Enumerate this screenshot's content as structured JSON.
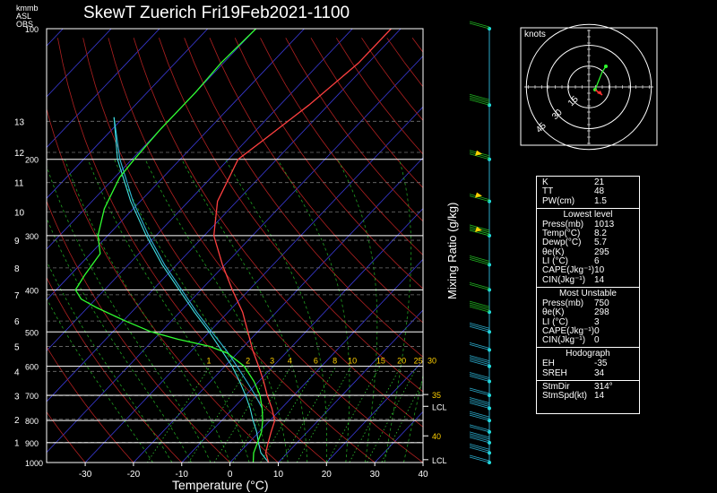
{
  "chart_data": {
    "type": "skewt",
    "title": "SkewT Zuerich Fri19Feb2021-1100",
    "xlabel": "Temperature (°C)",
    "ylabel_right": "Mixing Ratio (g/kg)",
    "corner_labels": [
      "km",
      "ASL",
      "OBS"
    ],
    "pressure_unit_label": "mb",
    "pressure_levels": [
      1000,
      900,
      800,
      700,
      600,
      500,
      400,
      300,
      200,
      100
    ],
    "pressure_ticks": [
      "1000",
      "900",
      "800",
      "700",
      "600",
      "500",
      "400",
      "300",
      "200",
      "100"
    ],
    "height_ticks": [
      "1",
      "2",
      "3",
      "4",
      "5",
      "6",
      "7",
      "8",
      "9",
      "10",
      "11",
      "12",
      "13"
    ],
    "height_km": [
      1,
      2,
      3,
      4,
      5,
      6,
      7,
      8,
      9,
      10,
      11,
      12,
      13
    ],
    "x_ticks": [
      "-30",
      "-20",
      "-10",
      "0",
      "10",
      "20",
      "30",
      "40"
    ],
    "x_tick_values": [
      -30,
      -20,
      -10,
      0,
      10,
      20,
      30,
      40
    ],
    "xlim": [
      -38,
      40
    ],
    "plim": [
      1000,
      100
    ],
    "mixing_ratio_values": [
      "1",
      "2",
      "3",
      "4",
      "6",
      "8",
      "10",
      "15",
      "20",
      "25",
      "30"
    ],
    "mixing_ratio_g_kg": [
      1,
      2,
      3,
      4,
      6,
      8,
      10,
      15,
      20,
      25,
      30
    ],
    "side_markers": [
      {
        "text": "35",
        "p": 697,
        "color": "#ffd000"
      },
      {
        "text": "LCL",
        "p": 742,
        "color": "#ffffff"
      },
      {
        "text": "40",
        "p": 868,
        "color": "#ffd000"
      },
      {
        "text": "LCL",
        "p": 985,
        "color": "#ffffff"
      }
    ],
    "temperature": {
      "name": "Temperature",
      "color": "#ff4040",
      "points": [
        [
          1013,
          8.2
        ],
        [
          1000,
          8.0
        ],
        [
          950,
          5.5
        ],
        [
          900,
          4.0
        ],
        [
          850,
          2.5
        ],
        [
          800,
          1.0
        ],
        [
          750,
          -2.0
        ],
        [
          700,
          -5.5
        ],
        [
          650,
          -9.0
        ],
        [
          600,
          -13.0
        ],
        [
          550,
          -17.5
        ],
        [
          500,
          -22.0
        ],
        [
          450,
          -27.0
        ],
        [
          400,
          -33.5
        ],
        [
          350,
          -40.5
        ],
        [
          300,
          -48.0
        ],
        [
          250,
          -54.0
        ],
        [
          200,
          -58.0
        ],
        [
          180,
          -56.5
        ],
        [
          150,
          -54.0
        ],
        [
          120,
          -52.0
        ],
        [
          100,
          -52.0
        ]
      ]
    },
    "dewpoint": {
      "name": "Dewpoint",
      "color": "#30ff30",
      "points": [
        [
          1013,
          5.7
        ],
        [
          1000,
          4.8
        ],
        [
          950,
          3.0
        ],
        [
          900,
          1.8
        ],
        [
          850,
          0.5
        ],
        [
          800,
          -1.5
        ],
        [
          750,
          -4.0
        ],
        [
          700,
          -7.0
        ],
        [
          650,
          -11.0
        ],
        [
          600,
          -16.0
        ],
        [
          560,
          -22.0
        ],
        [
          540,
          -27.0
        ],
        [
          520,
          -35.0
        ],
        [
          500,
          -42.0
        ],
        [
          470,
          -50.0
        ],
        [
          440,
          -58.0
        ],
        [
          420,
          -63.0
        ],
        [
          400,
          -66.0
        ],
        [
          370,
          -67.0
        ],
        [
          330,
          -68.0
        ],
        [
          300,
          -72.0
        ],
        [
          260,
          -76.0
        ],
        [
          220,
          -79.0
        ],
        [
          200,
          -79.5
        ],
        [
          170,
          -80.0
        ],
        [
          140,
          -80.0
        ],
        [
          120,
          -80.5
        ],
        [
          100,
          -80.0
        ]
      ]
    },
    "parcel_1": {
      "name": "Parcel",
      "color": "#40e0e0",
      "points": [
        [
          1000,
          8.0
        ],
        [
          950,
          4.5
        ],
        [
          900,
          2.0
        ],
        [
          850,
          -0.5
        ],
        [
          800,
          -3.5
        ],
        [
          750,
          -6.5
        ],
        [
          700,
          -10.0
        ],
        [
          650,
          -14.0
        ],
        [
          600,
          -18.5
        ],
        [
          550,
          -24.0
        ],
        [
          500,
          -30.0
        ],
        [
          450,
          -37.0
        ],
        [
          400,
          -44.5
        ],
        [
          350,
          -53.0
        ],
        [
          300,
          -62.0
        ],
        [
          250,
          -72.0
        ],
        [
          200,
          -83.0
        ],
        [
          160,
          -92.0
        ]
      ]
    },
    "parcel_2": {
      "name": "Parcel",
      "color": "#2fb8d8",
      "points": [
        [
          750,
          -4.0
        ],
        [
          700,
          -8.0
        ],
        [
          650,
          -12.5
        ],
        [
          600,
          -17.5
        ],
        [
          550,
          -23.0
        ],
        [
          500,
          -29.5
        ],
        [
          450,
          -36.5
        ],
        [
          400,
          -44.0
        ],
        [
          350,
          -52.5
        ],
        [
          300,
          -61.5
        ],
        [
          250,
          -71.5
        ],
        [
          200,
          -82.5
        ],
        [
          160,
          -92.0
        ]
      ]
    },
    "wind_profile_pressures": [
      1000,
      950,
      900,
      850,
      800,
      750,
      700,
      650,
      600,
      550,
      500,
      450,
      400,
      350,
      300,
      250,
      200,
      150,
      100
    ],
    "hodograph": {
      "title": "knots",
      "rings_kt": [
        15,
        30,
        45
      ],
      "ring_labels": [
        "15",
        "30",
        "45"
      ]
    }
  },
  "indices": {
    "top": [
      [
        "K",
        "21"
      ],
      [
        "TT",
        "48"
      ],
      [
        "PW(cm)",
        "1.5"
      ]
    ],
    "lowest_title": "Lowest level",
    "lowest": [
      [
        "Press(mb)",
        "1013"
      ],
      [
        "Temp(°C)",
        "8.2"
      ],
      [
        "Dewp(°C)",
        "5.7"
      ],
      [
        "θe(K)",
        "295"
      ],
      [
        "LI (°C)",
        "6"
      ],
      [
        "CAPE(Jkg⁻¹)",
        "10"
      ],
      [
        "CIN(Jkg⁻¹)",
        "14"
      ]
    ],
    "unstable_title": "Most Unstable",
    "unstable": [
      [
        "Press(mb)",
        "750"
      ],
      [
        "θe(K)",
        "298"
      ],
      [
        "LI (°C)",
        "3"
      ],
      [
        "CAPE(Jkg⁻¹)",
        "0"
      ],
      [
        "CIN(Jkg⁻¹)",
        "0"
      ]
    ],
    "hodo_title": "Hodograph",
    "hodo": [
      [
        "EH",
        "-35"
      ],
      [
        "SREH",
        "34"
      ]
    ],
    "storm": [
      [
        "StmDir",
        "314°"
      ],
      [
        "StmSpd(kt)",
        "14"
      ]
    ]
  }
}
